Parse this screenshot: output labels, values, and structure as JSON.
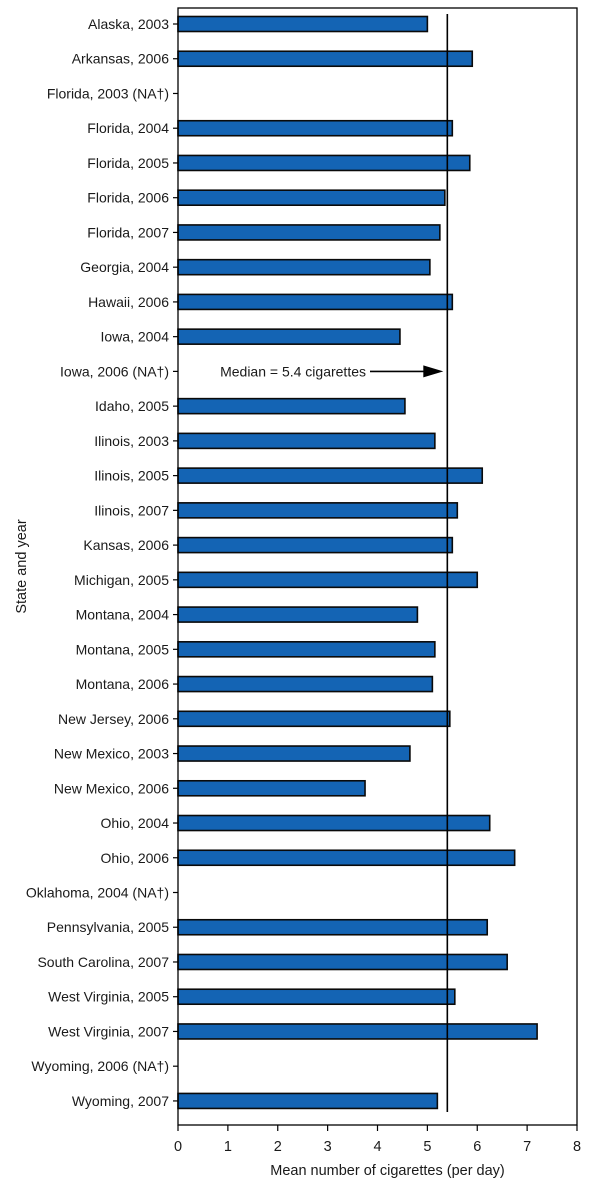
{
  "chart_data": {
    "type": "bar",
    "orientation": "horizontal",
    "xlabel": "Mean number of cigarettes (per day)",
    "ylabel": "State and year",
    "xlim": [
      0,
      8
    ],
    "xticks": [
      0,
      1,
      2,
      3,
      4,
      5,
      6,
      7,
      8
    ],
    "categories": [
      "Alaska, 2003",
      "Arkansas, 2006",
      "Florida, 2003 (NA†)",
      "Florida, 2004",
      "Florida, 2005",
      "Florida, 2006",
      "Florida, 2007",
      "Georgia, 2004",
      "Hawaii, 2006",
      "Iowa, 2004",
      "Iowa, 2006 (NA†)",
      "Idaho, 2005",
      "Ilinois, 2003",
      "Ilinois, 2005",
      "Ilinois, 2007",
      "Kansas, 2006",
      "Michigan, 2005",
      "Montana, 2004",
      "Montana, 2005",
      "Montana, 2006",
      "New Jersey, 2006",
      "New Mexico, 2003",
      "New Mexico, 2006",
      "Ohio, 2004",
      "Ohio, 2006",
      "Oklahoma, 2004 (NA†)",
      "Pennsylvania, 2005",
      "South Carolina, 2007",
      "West Virginia, 2005",
      "West Virginia, 2007",
      "Wyoming, 2006 (NA†)",
      "Wyoming, 2007"
    ],
    "values": [
      5.0,
      5.9,
      null,
      5.5,
      5.85,
      5.35,
      5.25,
      5.05,
      5.5,
      4.45,
      null,
      4.55,
      5.15,
      6.1,
      5.6,
      5.5,
      6.0,
      4.8,
      5.15,
      5.1,
      5.45,
      4.65,
      3.75,
      6.25,
      6.75,
      null,
      6.2,
      6.6,
      5.55,
      7.2,
      null,
      5.2
    ],
    "median": {
      "value": 5.4,
      "label": "Median = 5.4 cigarettes"
    },
    "colors": {
      "bar": "#1464b4",
      "bar_edge": "#0a0a0a",
      "axis": "#000000"
    },
    "grid": false
  }
}
